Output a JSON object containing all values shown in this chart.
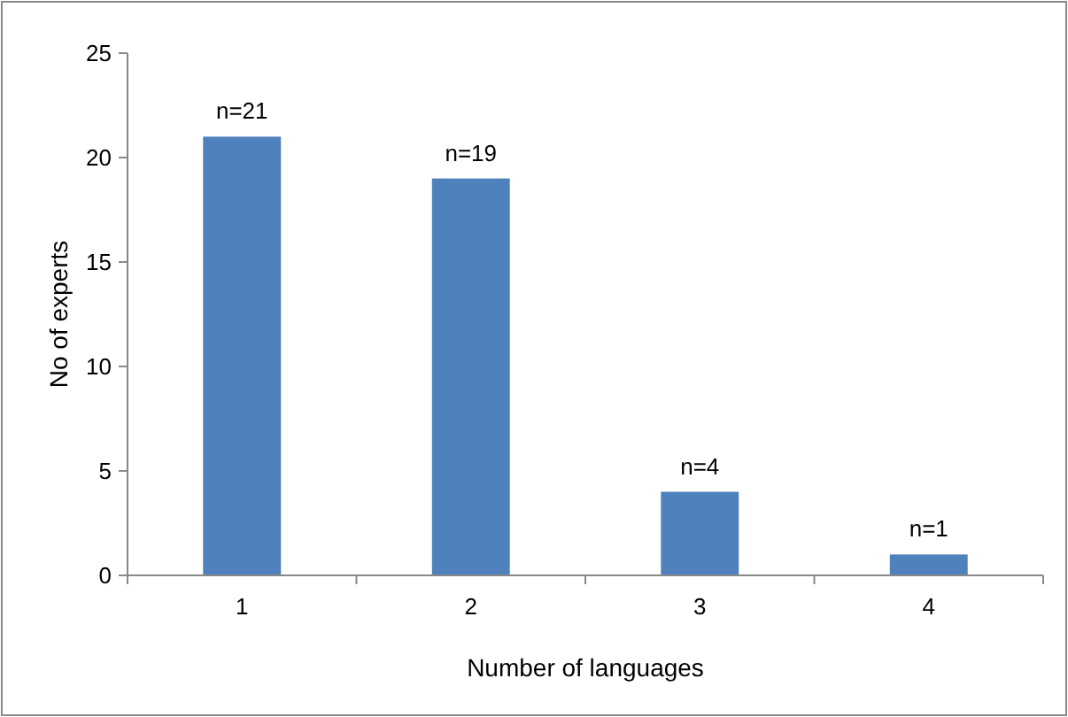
{
  "chart_data": {
    "type": "bar",
    "xlabel": "Number of languages",
    "ylabel": "No of experts",
    "categories": [
      "1",
      "2",
      "3",
      "4"
    ],
    "values": [
      21,
      19,
      4,
      1
    ],
    "value_labels": [
      "n=21",
      "n=19",
      "n=4",
      "n=1"
    ],
    "color": "#4f81bd",
    "ylim": [
      0,
      25
    ],
    "yticks": [
      0,
      5,
      10,
      15,
      20,
      25
    ],
    "grid": false
  }
}
